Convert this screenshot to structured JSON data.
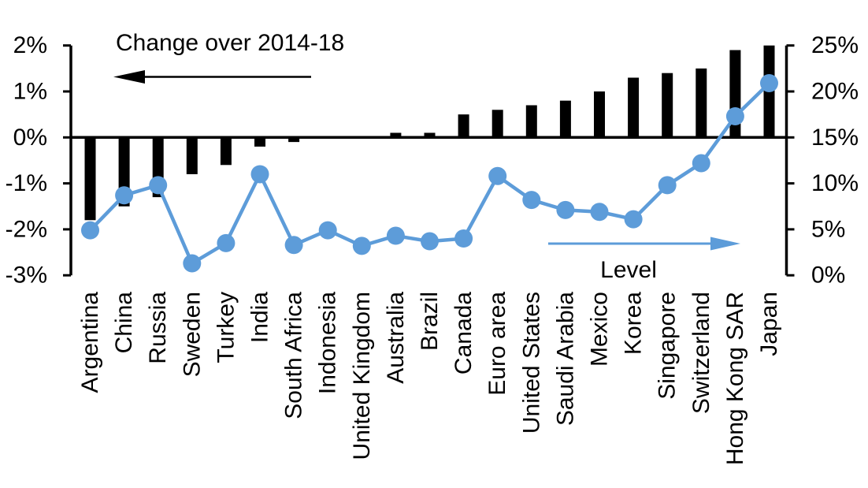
{
  "chart_data": {
    "type": "combo-bar-line",
    "categories": [
      "Argentina",
      "China",
      "Russia",
      "Sweden",
      "Turkey",
      "India",
      "South Africa",
      "Indonesia",
      "United Kingdom",
      "Australia",
      "Brazil",
      "Canada",
      "Euro area",
      "United States",
      "Saudi Arabia",
      "Mexico",
      "Korea",
      "Singapore",
      "Switzerland",
      "Hong Kong SAR",
      "Japan"
    ],
    "series": [
      {
        "name": "Change over 2014-18",
        "type": "bar",
        "axis": "left",
        "color": "#000000",
        "values": [
          -1.8,
          -1.5,
          -1.3,
          -0.8,
          -0.6,
          -0.2,
          -0.1,
          0,
          0,
          0.1,
          0.1,
          0.5,
          0.6,
          0.7,
          0.8,
          1.0,
          1.3,
          1.4,
          1.5,
          1.9,
          2.0
        ]
      },
      {
        "name": "Level",
        "type": "line",
        "axis": "right",
        "color": "#5D9CD9",
        "values": [
          4.9,
          8.7,
          9.8,
          1.3,
          3.5,
          11.0,
          3.3,
          4.9,
          3.2,
          4.3,
          3.7,
          4.0,
          10.8,
          8.2,
          7.1,
          6.9,
          6.1,
          9.8,
          12.2,
          17.3,
          20.9
        ]
      }
    ],
    "left_axis": {
      "min": -3,
      "max": 2,
      "tick_values": [
        2,
        1,
        0,
        -1,
        -2,
        -3
      ],
      "tick_labels": [
        "2%",
        "1%",
        "0%",
        "-1%",
        "-2%",
        "-3%"
      ]
    },
    "right_axis": {
      "min": 0,
      "max": 25,
      "tick_values": [
        25,
        20,
        15,
        10,
        5,
        0
      ],
      "tick_labels": [
        "25%",
        "20%",
        "15%",
        "10%",
        "5%",
        "0%"
      ]
    },
    "annotations": {
      "bars_label": "Change over 2014-18",
      "bars_arrow_direction": "left",
      "line_label": "Level",
      "line_arrow_direction": "right"
    },
    "layout_hints": {
      "grid": "off",
      "legend": "none",
      "category_labels_rotated": true,
      "background": "#ffffff"
    }
  }
}
